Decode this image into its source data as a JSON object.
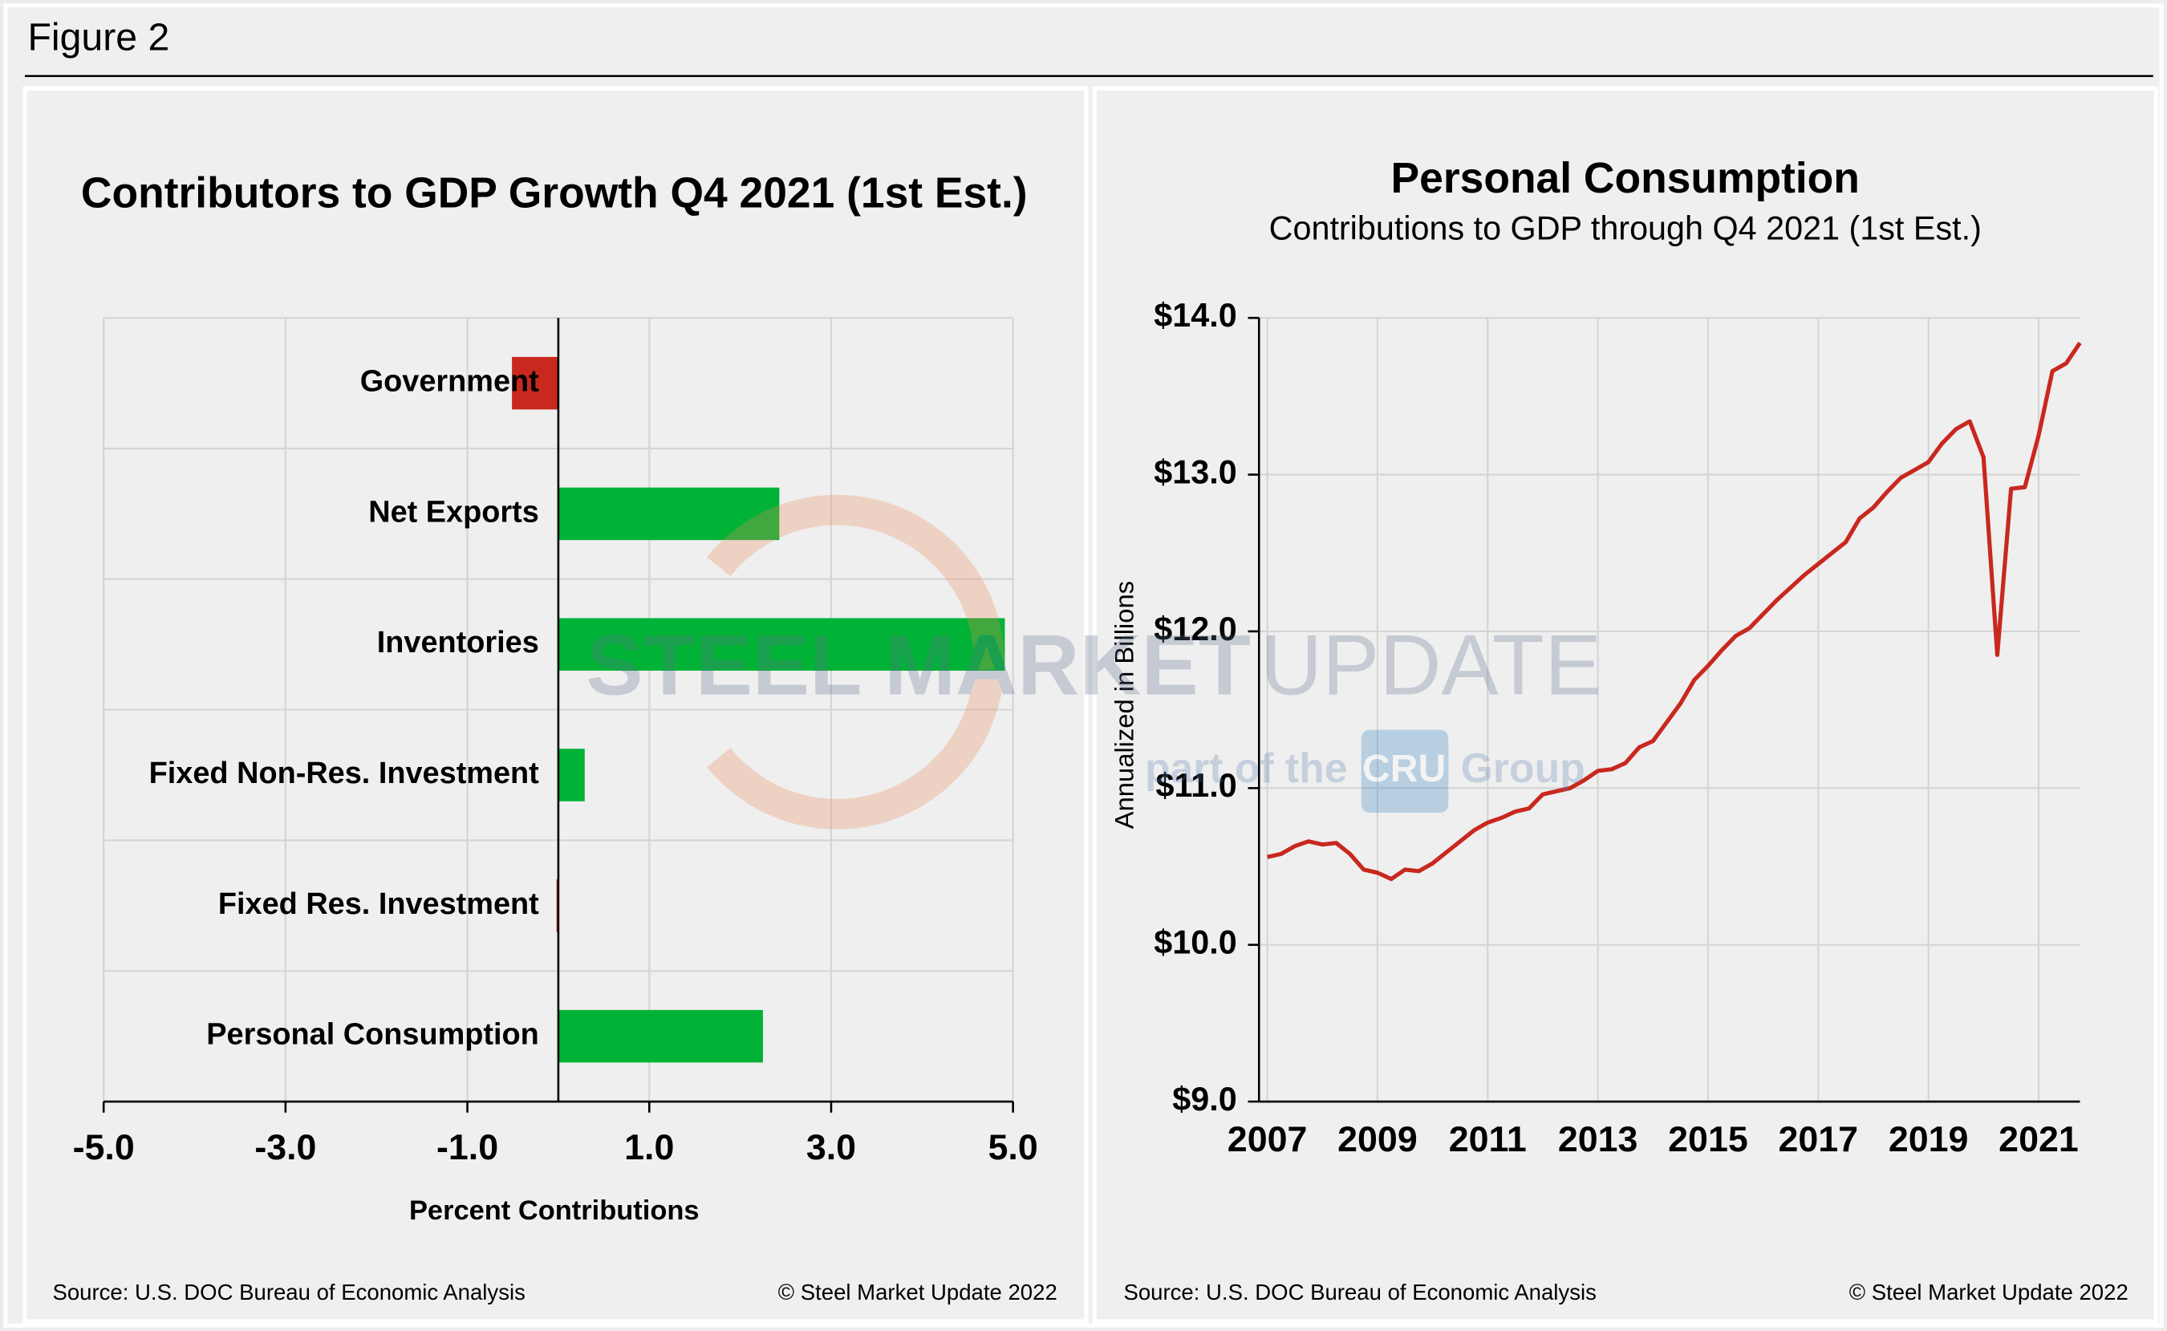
{
  "header": {
    "title": "Figure 2"
  },
  "watermark": {
    "brand_bold": "STEEL MARKET",
    "brand": "UPDATE",
    "tagline_pre": "part of the",
    "logo": "CRU",
    "tagline_post": "Group"
  },
  "chart_data": [
    {
      "type": "hbar",
      "title": "Contributors to GDP Growth Q4 2021 (1st Est.)",
      "categories": [
        "Government",
        "Net Exports",
        "Inventories",
        "Fixed Non-Res. Investment",
        "Fixed Res. Investment",
        "Personal Consumption"
      ],
      "values": [
        -0.51,
        2.43,
        4.91,
        0.29,
        -0.02,
        2.25
      ],
      "positive_color": "#00b336",
      "negative_color": "#c8281e",
      "xlim": [
        -5,
        5
      ],
      "xticks": [
        {
          "value": -5,
          "label": "-5.0"
        },
        {
          "value": -3,
          "label": "-3.0"
        },
        {
          "value": -1,
          "label": "-1.0"
        },
        {
          "value": 1,
          "label": "1.0"
        },
        {
          "value": 3,
          "label": "3.0"
        },
        {
          "value": 5,
          "label": "5.0"
        }
      ],
      "xlabel": "Percent Contributions",
      "grid": true,
      "source": "Source: U.S. DOC Bureau of Economic Analysis",
      "credit": "© Steel Market Update 2022"
    },
    {
      "type": "line",
      "title": "Personal Consumption",
      "subtitle": "Contributions to GDP through Q4 2021 (1st Est.)",
      "ylabel": "Annualized in Billions",
      "color": "#c8281e",
      "x": [
        2007,
        2007.25,
        2007.5,
        2007.75,
        2008,
        2008.25,
        2008.5,
        2008.75,
        2009,
        2009.25,
        2009.5,
        2009.75,
        2010,
        2010.25,
        2010.5,
        2010.75,
        2011,
        2011.25,
        2011.5,
        2011.75,
        2012,
        2012.25,
        2012.5,
        2012.75,
        2013,
        2013.25,
        2013.5,
        2013.75,
        2014,
        2014.25,
        2014.5,
        2014.75,
        2015,
        2015.25,
        2015.5,
        2015.75,
        2016,
        2016.25,
        2016.5,
        2016.75,
        2017,
        2017.25,
        2017.5,
        2017.75,
        2018,
        2018.25,
        2018.5,
        2018.75,
        2019,
        2019.25,
        2019.5,
        2019.75,
        2020,
        2020.25,
        2020.5,
        2020.75,
        2021,
        2021.25,
        2021.5,
        2021.75
      ],
      "values": [
        10.56,
        10.58,
        10.63,
        10.66,
        10.64,
        10.65,
        10.58,
        10.48,
        10.46,
        10.42,
        10.48,
        10.47,
        10.52,
        10.59,
        10.66,
        10.73,
        10.78,
        10.81,
        10.85,
        10.87,
        10.96,
        10.98,
        11.0,
        11.05,
        11.11,
        11.12,
        11.16,
        11.26,
        11.3,
        11.42,
        11.54,
        11.69,
        11.78,
        11.88,
        11.97,
        12.02,
        12.11,
        12.2,
        12.28,
        12.36,
        12.43,
        12.5,
        12.57,
        12.72,
        12.79,
        12.89,
        12.98,
        13.03,
        13.08,
        13.2,
        13.29,
        13.34,
        13.11,
        11.85,
        12.91,
        12.92,
        13.25,
        13.66,
        13.71,
        13.84
      ],
      "xlim": [
        2007,
        2021.75
      ],
      "xticks": [
        2007,
        2009,
        2011,
        2013,
        2015,
        2017,
        2019,
        2021
      ],
      "ylim": [
        9,
        14
      ],
      "yticks": [
        {
          "value": 9,
          "label": "$9.0"
        },
        {
          "value": 10,
          "label": "$10.0"
        },
        {
          "value": 11,
          "label": "$11.0"
        },
        {
          "value": 12,
          "label": "$12.0"
        },
        {
          "value": 13,
          "label": "$13.0"
        },
        {
          "value": 14,
          "label": "$14.0"
        }
      ],
      "grid": true,
      "source": "Source: U.S. DOC Bureau of Economic Analysis",
      "credit": "© Steel Market Update 2022"
    }
  ]
}
